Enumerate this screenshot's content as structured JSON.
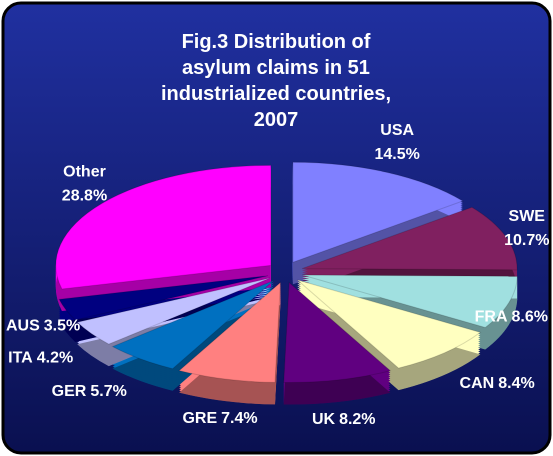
{
  "chart_data": {
    "type": "pie",
    "title": "Fig.3 Distribution of asylum claims in 51 industrialized countries, 2007",
    "categories": [
      "USA",
      "SWE",
      "FRA",
      "CAN",
      "UK",
      "GRE",
      "GER",
      "ITA",
      "AUS",
      "Other"
    ],
    "values": [
      14.5,
      10.7,
      8.6,
      8.4,
      8.2,
      7.4,
      5.7,
      4.2,
      3.5,
      28.8
    ],
    "value_labels": [
      "14.5%",
      "10.7%",
      "8.6%",
      "8.4%",
      "8.2%",
      "7.4%",
      "5.7%",
      "4.2%",
      "3.5%",
      "28.8%"
    ],
    "colors": [
      "#8080ff",
      "#802060",
      "#a0e0e0",
      "#ffffc0",
      "#600080",
      "#ff8080",
      "#0070c0",
      "#c0c0ff",
      "#000080",
      "#ff00ff"
    ]
  }
}
